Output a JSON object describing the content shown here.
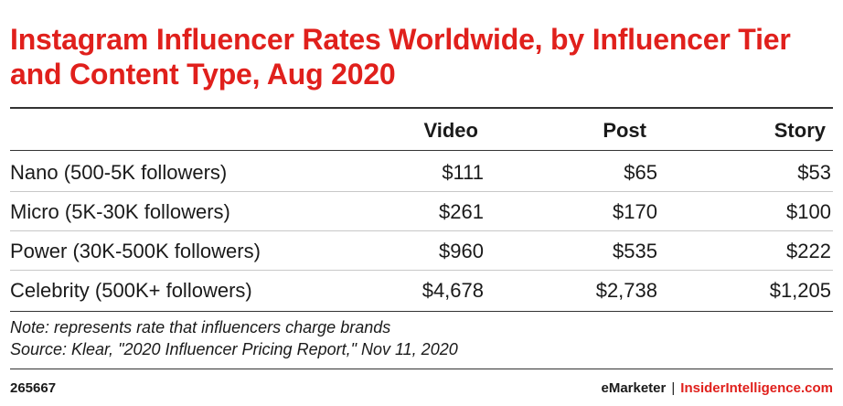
{
  "chart_data": {
    "type": "table",
    "title": "Instagram Influencer Rates Worldwide, by Influencer Tier and Content Type, Aug 2020",
    "columns": [
      "Video",
      "Post",
      "Story"
    ],
    "rows": [
      {
        "label": "Nano (500-5K followers)",
        "values": [
          "$111",
          "$65",
          "$53"
        ]
      },
      {
        "label": "Micro (5K-30K followers)",
        "values": [
          "$261",
          "$170",
          "$100"
        ]
      },
      {
        "label": "Power (30K-500K followers)",
        "values": [
          "$960",
          "$535",
          "$222"
        ]
      },
      {
        "label": "Celebrity (500K+ followers)",
        "values": [
          "$4,678",
          "$2,738",
          "$1,205"
        ]
      }
    ],
    "note": "Note: represents rate that influencers charge brands",
    "source": "Source: Klear, \"2020 Influencer Pricing Report,\" Nov 11, 2020"
  },
  "footer": {
    "chart_id": "265667",
    "brand": "eMarketer",
    "separator": "|",
    "site": "InsiderIntelligence.com"
  },
  "colors": {
    "title": "#e0201c",
    "text": "#1a1a1a",
    "rule": "#333333",
    "row_divider": "#c8c8c8"
  }
}
